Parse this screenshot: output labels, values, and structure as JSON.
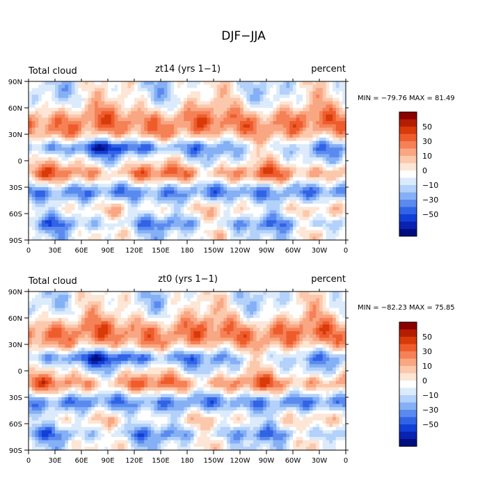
{
  "title": "DJF−JJA",
  "colorbar": {
    "labels": [
      "50",
      "30",
      "10",
      "0",
      "−10",
      "−30",
      "−50"
    ],
    "colors": [
      "#8b0000",
      "#b41e00",
      "#d83a0a",
      "#ef5c2c",
      "#f58156",
      "#f9a683",
      "#fcc8ac",
      "#fde6d6",
      "#ffffff",
      "#dcebfc",
      "#b3d1fa",
      "#85b0f5",
      "#5b8aef",
      "#3163e6",
      "#123ed8",
      "#0a22b0",
      "#000f80"
    ]
  },
  "chart_data": [
    {
      "type": "contour-map",
      "variable": "Total cloud",
      "title": "zt14 (yrs 1−1)",
      "units": "percent",
      "stats": "MIN = −79.76 MAX =  81.49",
      "min": -79.76,
      "max": 81.49,
      "xlabels": [
        "0",
        "30E",
        "60E",
        "90E",
        "120E",
        "150E",
        "180",
        "150W",
        "120W",
        "90W",
        "60W",
        "30W",
        "0"
      ],
      "ylabels": [
        "90N",
        "60N",
        "30N",
        "0",
        "30S",
        "60S",
        "90S"
      ],
      "lon_range": [
        0,
        360
      ],
      "lat_range": [
        -90,
        90
      ],
      "levels": [
        -70,
        -60,
        -50,
        -40,
        -30,
        -20,
        -10,
        0,
        10,
        20,
        30,
        40,
        50,
        60,
        70
      ]
    },
    {
      "type": "contour-map",
      "variable": "Total cloud",
      "title": "zt0 (yrs 1−1)",
      "units": "percent",
      "stats": "MIN = −82.23 MAX =  75.85",
      "min": -82.23,
      "max": 75.85,
      "xlabels": [
        "0",
        "30E",
        "60E",
        "90E",
        "120E",
        "150E",
        "180",
        "150W",
        "120W",
        "90W",
        "60W",
        "30W",
        "0"
      ],
      "ylabels": [
        "90N",
        "60N",
        "30N",
        "0",
        "30S",
        "60S",
        "90S"
      ],
      "lon_range": [
        0,
        360
      ],
      "lat_range": [
        -90,
        90
      ],
      "levels": [
        -70,
        -60,
        -50,
        -40,
        -30,
        -20,
        -10,
        0,
        10,
        20,
        30,
        40,
        50,
        60,
        70
      ]
    }
  ]
}
